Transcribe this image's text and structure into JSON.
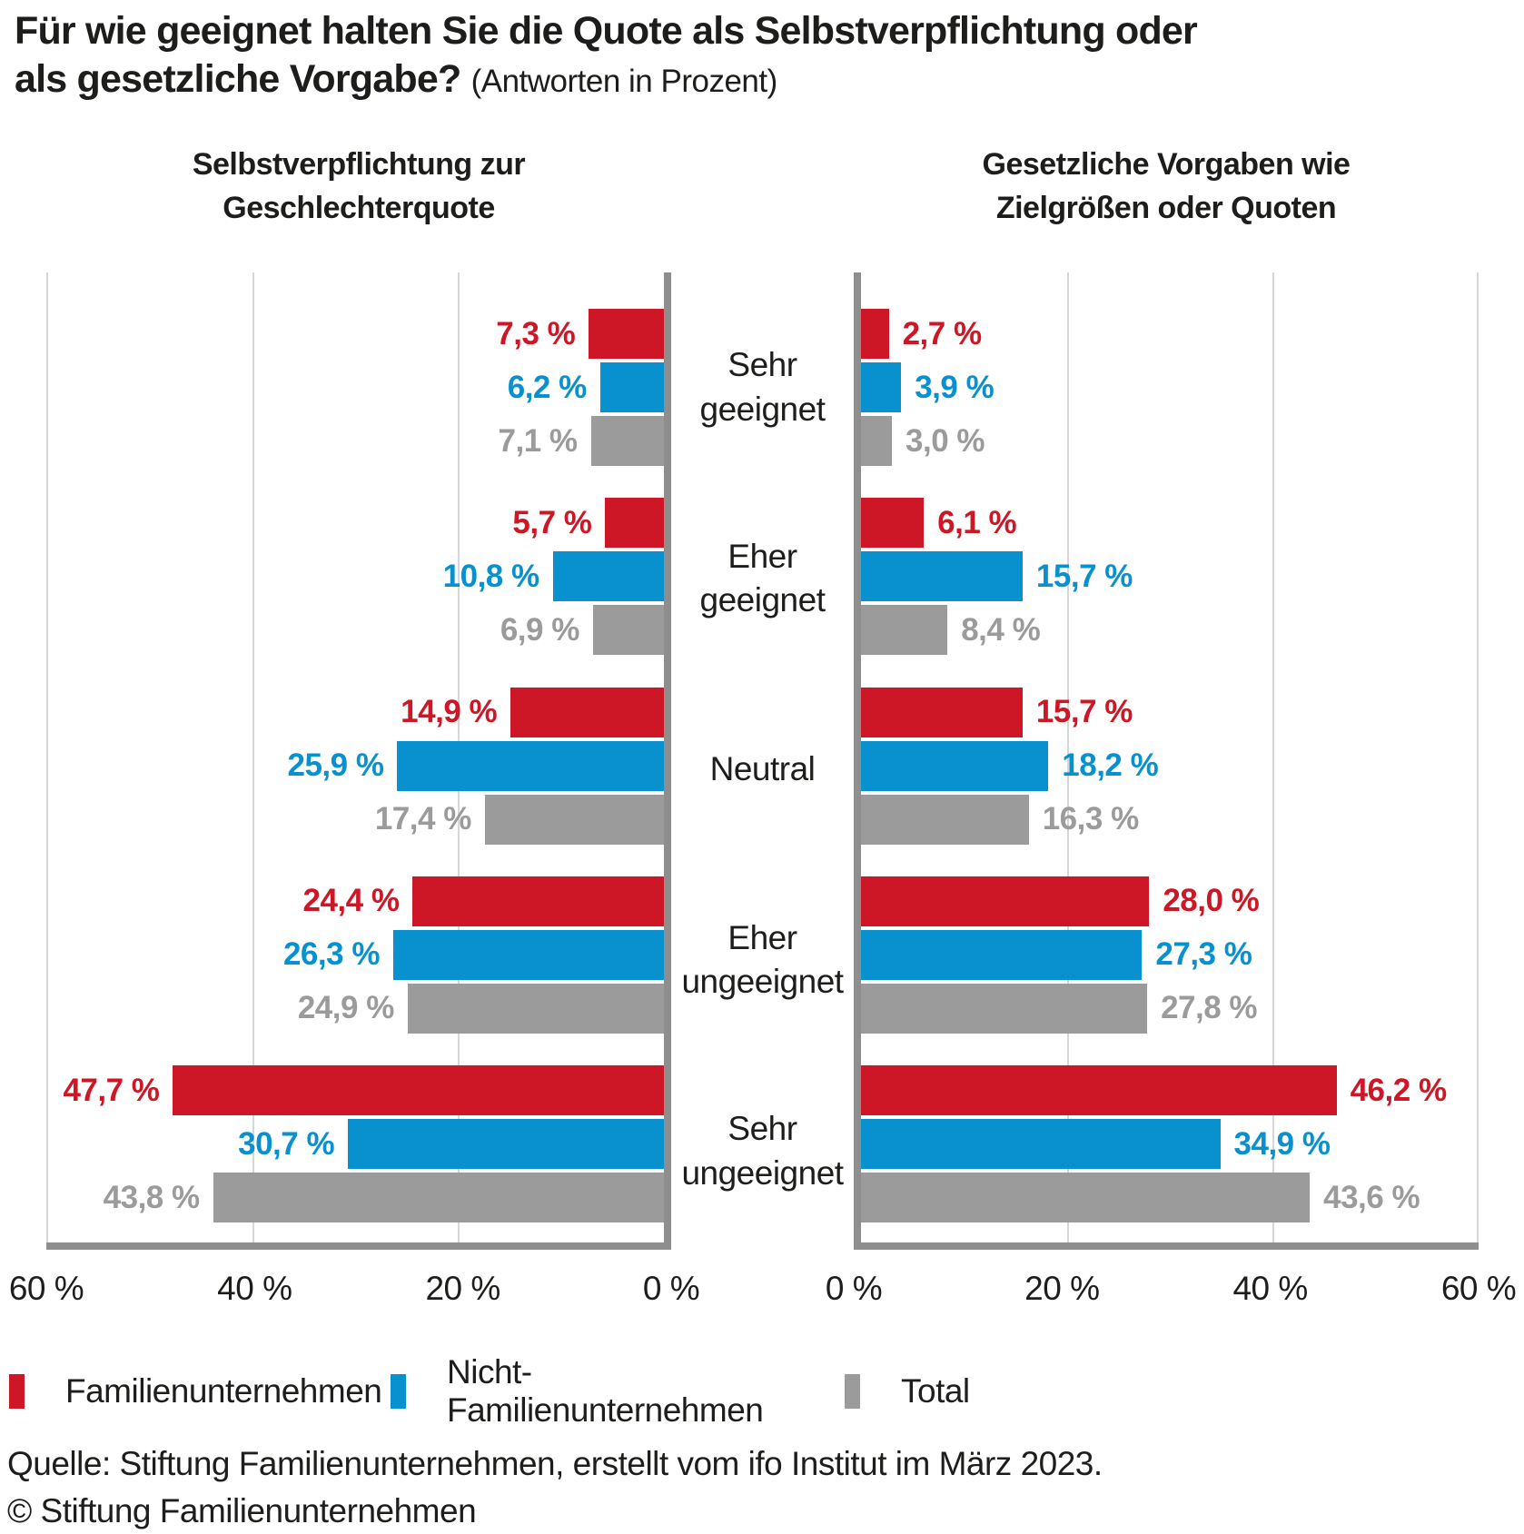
{
  "title": {
    "line1": "Für wie geeignet halten Sie die Quote als Selbstverpflichtung oder",
    "line2_bold": "als gesetzliche Vorgabe?",
    "line2_suffix": "(Antworten in Prozent)"
  },
  "panel_headers": {
    "left": {
      "line1": "Selbstverpflichtung zur",
      "line2": "Geschlechterquote"
    },
    "right": {
      "line1": "Gesetzliche Vorgaben wie",
      "line2": "Zielgrößen oder Quoten"
    }
  },
  "colors": {
    "familienunternehmen_red": "#cd1626",
    "nicht_familienunternehmen_blue": "#0990cf",
    "total_gray": "#9b9b9b",
    "axis_gray": "#8e8e8e",
    "gridline_gray": "#d7d7d7",
    "text_dark": "#1d1d1b"
  },
  "legend": [
    {
      "label": "Familienunternehmen",
      "color": "#cd1626"
    },
    {
      "label": "Nicht-Familienunternehmen",
      "color": "#0990cf"
    },
    {
      "label": "Total",
      "color": "#9b9b9b"
    }
  ],
  "source": {
    "line1": "Quelle: Stiftung Familienunternehmen, erstellt vom ifo Institut im März 2023.",
    "line2": "© Stiftung Familienunternehmen"
  },
  "chart_data": {
    "type": "bar",
    "layout": "horizontal-diverging-two-panels",
    "unit": "%",
    "axis_max": 60,
    "grid": true,
    "categories": [
      "Sehr geeignet",
      "Eher geeignet",
      "Neutral",
      "Eher ungeeignet",
      "Sehr ungeeignet"
    ],
    "series_names": [
      "Familienunternehmen",
      "Nicht-Familienunternehmen",
      "Total"
    ],
    "series_colors": [
      "#cd1626",
      "#0990cf",
      "#9b9b9b"
    ],
    "ticks": {
      "left_panel": {
        "labels": [
          "60 %",
          "40 %",
          "20 %",
          "0 %"
        ],
        "positions_pct": [
          0,
          33.333,
          66.667,
          100
        ]
      },
      "right_panel": {
        "labels": [
          "0 %",
          "20 %",
          "40 %",
          "60 %"
        ],
        "positions_pct": [
          0,
          33.333,
          66.667,
          100
        ]
      }
    },
    "panels": [
      {
        "id": "left",
        "title": "Selbstverpflichtung zur Geschlechterquote",
        "bars_grow": "right-to-left",
        "series": [
          {
            "name": "Familienunternehmen",
            "values": [
              7.3,
              5.7,
              14.9,
              24.4,
              47.7
            ],
            "labels": [
              "7,3 %",
              "5,7 %",
              "14,9 %",
              "24,4 %",
              "47,7 %"
            ]
          },
          {
            "name": "Nicht-Familienunternehmen",
            "values": [
              6.2,
              10.8,
              25.9,
              26.3,
              30.7
            ],
            "labels": [
              "6,2 %",
              "10,8 %",
              "25,9 %",
              "26,3 %",
              "30,7 %"
            ]
          },
          {
            "name": "Total",
            "values": [
              7.1,
              6.9,
              17.4,
              24.9,
              43.8
            ],
            "labels": [
              "7,1 %",
              "6,9 %",
              "17,4 %",
              "24,9 %",
              "43,8 %"
            ]
          }
        ]
      },
      {
        "id": "right",
        "title": "Gesetzliche Vorgaben wie Zielgrößen oder Quoten",
        "bars_grow": "left-to-right",
        "series": [
          {
            "name": "Familienunternehmen",
            "values": [
              2.7,
              6.1,
              15.7,
              28.0,
              46.2
            ],
            "labels": [
              "2,7 %",
              "6,1 %",
              "15,7 %",
              "28,0 %",
              "46,2 %"
            ]
          },
          {
            "name": "Nicht-Familienunternehmen",
            "values": [
              3.9,
              15.7,
              18.2,
              27.3,
              34.9
            ],
            "labels": [
              "3,9 %",
              "15,7 %",
              "18,2 %",
              "27,3 %",
              "34,9 %"
            ]
          },
          {
            "name": "Total",
            "values": [
              3.0,
              8.4,
              16.3,
              27.8,
              43.6
            ],
            "labels": [
              "3,0 %",
              "8,4 %",
              "16,3 %",
              "27,8 %",
              "43,6 %"
            ]
          }
        ]
      }
    ]
  }
}
